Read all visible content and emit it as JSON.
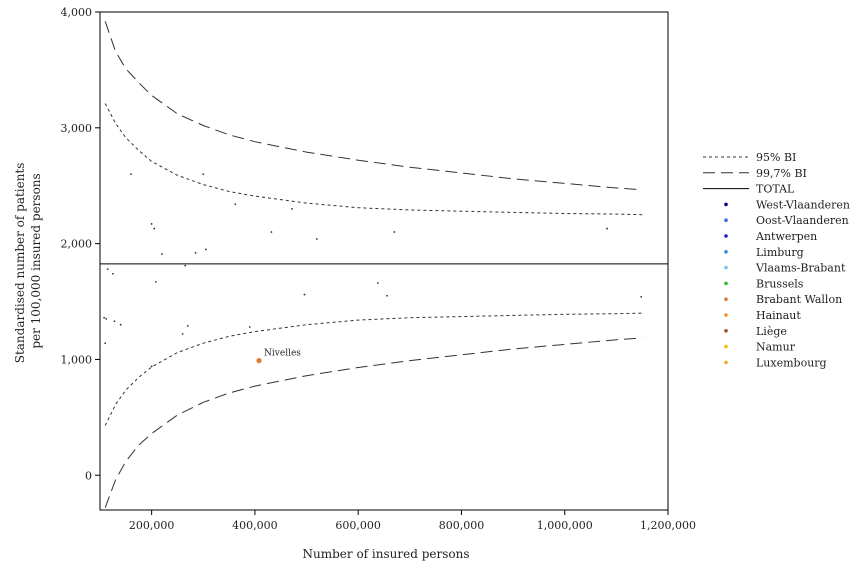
{
  "chart_data": {
    "type": "scatter",
    "title": "",
    "xlabel": "Number of insured persons",
    "ylabel_lines": [
      "Standardised number of patients",
      "per 100,000 insured persons"
    ],
    "xlim": [
      100000,
      1200000
    ],
    "ylim": [
      -300,
      4000
    ],
    "x_ticks": [
      200000,
      400000,
      600000,
      800000,
      1000000,
      1200000
    ],
    "x_tick_labels": [
      "200,000",
      "400,000",
      "600,000",
      "800,000",
      "1,000,000",
      "1,200,000"
    ],
    "y_ticks": [
      0,
      1000,
      2000,
      3000,
      4000
    ],
    "y_tick_labels": [
      "0",
      "1,000",
      "2,000",
      "3,000",
      "4,000"
    ],
    "grid": false,
    "legend_position": "right",
    "total": 1825,
    "funnel": {
      "x": [
        110000,
        130000,
        150000,
        175000,
        200000,
        250000,
        300000,
        350000,
        400000,
        500000,
        600000,
        700000,
        800000,
        900000,
        1000000,
        1100000,
        1150000
      ],
      "bi95_upper": [
        3210,
        3040,
        2915,
        2805,
        2710,
        2590,
        2510,
        2450,
        2410,
        2350,
        2310,
        2290,
        2280,
        2270,
        2260,
        2255,
        2250
      ],
      "bi95_lower": [
        430,
        610,
        735,
        845,
        935,
        1060,
        1140,
        1200,
        1240,
        1300,
        1340,
        1360,
        1370,
        1380,
        1390,
        1395,
        1400
      ],
      "bi997_upper": [
        3920,
        3660,
        3510,
        3390,
        3280,
        3120,
        3020,
        2940,
        2880,
        2790,
        2720,
        2660,
        2610,
        2560,
        2520,
        2480,
        2465
      ],
      "bi997_lower": [
        -280,
        -40,
        120,
        260,
        360,
        520,
        630,
        710,
        770,
        860,
        930,
        990,
        1040,
        1090,
        1130,
        1170,
        1185
      ]
    },
    "series_styles": {
      "bi95": {
        "dash": "3,3",
        "color": "#333333"
      },
      "bi997": {
        "dash": "12,6",
        "color": "#333333"
      },
      "total": {
        "color": "#000000"
      }
    },
    "points": [
      {
        "x": 108000,
        "y": 1360
      },
      {
        "x": 110000,
        "y": 1140
      },
      {
        "x": 112000,
        "y": 1350
      },
      {
        "x": 115000,
        "y": 1780
      },
      {
        "x": 125000,
        "y": 1740
      },
      {
        "x": 128000,
        "y": 1330
      },
      {
        "x": 140000,
        "y": 1300
      },
      {
        "x": 160000,
        "y": 2600
      },
      {
        "x": 200000,
        "y": 940
      },
      {
        "x": 200000,
        "y": 2170
      },
      {
        "x": 205000,
        "y": 2130
      },
      {
        "x": 208000,
        "y": 1670
      },
      {
        "x": 220000,
        "y": 1910
      },
      {
        "x": 260000,
        "y": 1220
      },
      {
        "x": 265000,
        "y": 1810
      },
      {
        "x": 270000,
        "y": 1290
      },
      {
        "x": 285000,
        "y": 1920
      },
      {
        "x": 300000,
        "y": 2600
      },
      {
        "x": 305000,
        "y": 1950
      },
      {
        "x": 362000,
        "y": 2340
      },
      {
        "x": 390000,
        "y": 1280
      },
      {
        "x": 432000,
        "y": 2100
      },
      {
        "x": 472000,
        "y": 2300
      },
      {
        "x": 496000,
        "y": 1560
      },
      {
        "x": 520000,
        "y": 2040
      },
      {
        "x": 638000,
        "y": 1660
      },
      {
        "x": 656000,
        "y": 1550
      },
      {
        "x": 670000,
        "y": 2100
      },
      {
        "x": 1082000,
        "y": 2130
      },
      {
        "x": 1148000,
        "y": 1540
      }
    ],
    "highlight": {
      "x": 408000,
      "y": 990,
      "label": "Nivelles",
      "color": "#e07b39"
    },
    "legend": [
      {
        "label": "95% BI",
        "kind": "line",
        "style": "bi95"
      },
      {
        "label": "99,7% BI",
        "kind": "line",
        "style": "bi997"
      },
      {
        "label": "TOTAL",
        "kind": "line",
        "style": "total"
      },
      {
        "label": "West-Vlaanderen",
        "kind": "dot",
        "color": "#000080"
      },
      {
        "label": "Oost-Vlaanderen",
        "kind": "dot",
        "color": "#3a6fd8"
      },
      {
        "label": "Antwerpen",
        "kind": "dot",
        "color": "#1a1ad0"
      },
      {
        "label": "Limburg",
        "kind": "dot",
        "color": "#2e8be0"
      },
      {
        "label": "Vlaams-Brabant",
        "kind": "dot",
        "color": "#7fc3f0"
      },
      {
        "label": "Brussels",
        "kind": "dot",
        "color": "#2cb82c"
      },
      {
        "label": "Brabant Wallon",
        "kind": "dot",
        "color": "#e07b39"
      },
      {
        "label": "Hainaut",
        "kind": "dot",
        "color": "#f5901e"
      },
      {
        "label": "Liège",
        "kind": "dot",
        "color": "#a0522d"
      },
      {
        "label": "Namur",
        "kind": "dot",
        "color": "#f2c200"
      },
      {
        "label": "Luxembourg",
        "kind": "dot",
        "color": "#f5a623"
      }
    ]
  }
}
